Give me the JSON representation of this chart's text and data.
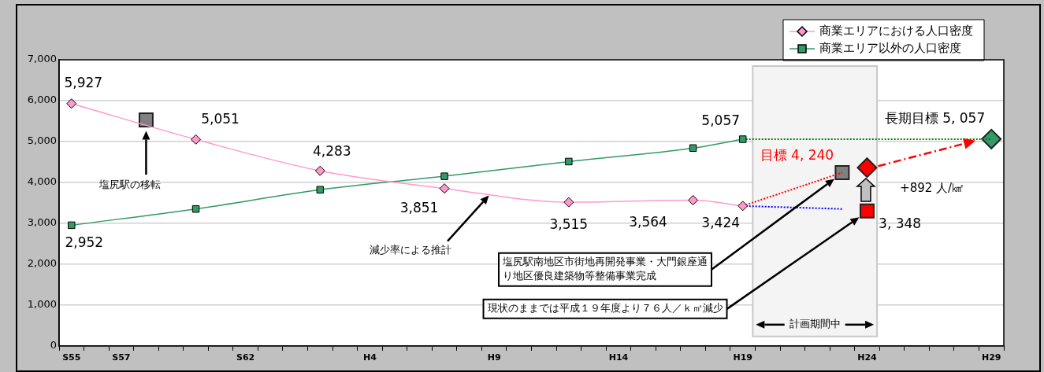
{
  "chart_data": {
    "type": "line",
    "categories": [
      "S55",
      null,
      "S57",
      null,
      null,
      null,
      null,
      "S62",
      null,
      null,
      null,
      null,
      "H4",
      null,
      null,
      null,
      null,
      "H9",
      null,
      null,
      null,
      null,
      "H14",
      null,
      null,
      null,
      null,
      "H19",
      null,
      null,
      null,
      null,
      "H24",
      null,
      null,
      null,
      null,
      "H29"
    ],
    "series": [
      {
        "name": "商業エリアにおける人口密度",
        "color": "#ff99cc",
        "marker": "diamond",
        "values": [
          5927,
          null,
          null,
          null,
          null,
          5051,
          null,
          null,
          null,
          null,
          4283,
          null,
          null,
          null,
          null,
          3851,
          null,
          null,
          null,
          null,
          3515,
          null,
          null,
          null,
          null,
          3564,
          null,
          3424,
          null,
          null,
          null,
          null,
          null,
          null,
          null,
          null,
          null,
          null
        ],
        "value_labels": [
          "5,927",
          null,
          null,
          null,
          null,
          "5,051",
          null,
          null,
          null,
          null,
          "4,283",
          null,
          null,
          null,
          null,
          "3,851",
          null,
          null,
          null,
          null,
          "3,515",
          null,
          null,
          null,
          null,
          "3,564",
          null,
          "3,424",
          null,
          null,
          null,
          null,
          null,
          null,
          null,
          null,
          null,
          null
        ]
      },
      {
        "name": "商業エリア以外の人口密度",
        "color": "#339966",
        "marker": "square",
        "values": [
          2952,
          null,
          null,
          null,
          null,
          3350,
          null,
          null,
          null,
          null,
          3820,
          null,
          null,
          null,
          null,
          4150,
          null,
          null,
          null,
          null,
          4510,
          null,
          null,
          null,
          null,
          4840,
          null,
          5057,
          null,
          null,
          null,
          null,
          null,
          null,
          null,
          null,
          null,
          null
        ],
        "value_labels": [
          "2,952",
          null,
          null,
          null,
          null,
          null,
          null,
          null,
          null,
          null,
          null,
          null,
          null,
          null,
          null,
          null,
          null,
          null,
          null,
          null,
          null,
          null,
          null,
          null,
          null,
          null,
          null,
          "5,057",
          null,
          null,
          null,
          null,
          null,
          null,
          null,
          null,
          null,
          null
        ]
      },
      {
        "type": "scatter",
        "color": "#808080",
        "marker": "square",
        "values": [
          null,
          null,
          null,
          5530,
          null,
          null,
          null,
          null,
          null,
          null,
          null,
          null,
          null,
          null,
          null,
          null,
          null,
          null,
          null,
          null,
          null,
          null,
          null,
          null,
          null,
          null,
          null,
          null,
          null,
          null,
          null,
          null,
          null,
          null,
          null,
          null,
          null,
          null
        ]
      },
      {
        "type": "line",
        "color": "#ff0000",
        "marker": "none",
        "line_style": "dotted",
        "values": [
          null,
          null,
          null,
          null,
          null,
          null,
          null,
          null,
          null,
          null,
          null,
          null,
          null,
          null,
          null,
          null,
          null,
          null,
          null,
          null,
          null,
          null,
          null,
          null,
          null,
          null,
          null,
          3424,
          null,
          null,
          null,
          4240,
          null,
          null,
          null,
          null,
          null,
          null
        ]
      },
      {
        "type": "line",
        "color": "#0000ff",
        "marker": "none",
        "line_style": "dotted",
        "values": [
          null,
          null,
          null,
          null,
          null,
          null,
          null,
          null,
          null,
          null,
          null,
          null,
          null,
          null,
          null,
          null,
          null,
          null,
          null,
          null,
          null,
          null,
          null,
          null,
          null,
          null,
          null,
          3424,
          null,
          null,
          null,
          3350,
          null,
          null,
          null,
          null,
          null,
          null
        ]
      },
      {
        "type": "line",
        "color": "#008000",
        "marker": "none",
        "line_style": "dotted",
        "values": [
          null,
          null,
          null,
          null,
          null,
          null,
          null,
          null,
          null,
          null,
          null,
          null,
          null,
          null,
          null,
          null,
          null,
          null,
          null,
          null,
          null,
          null,
          null,
          null,
          null,
          null,
          null,
          5057,
          null,
          null,
          null,
          null,
          null,
          null,
          null,
          null,
          null,
          5057
        ]
      },
      {
        "type": "scatter",
        "color": "#808080",
        "marker": "square",
        "values": [
          null,
          null,
          null,
          null,
          null,
          null,
          null,
          null,
          null,
          null,
          null,
          null,
          null,
          null,
          null,
          null,
          null,
          null,
          null,
          null,
          null,
          null,
          null,
          null,
          null,
          null,
          null,
          null,
          null,
          null,
          null,
          4240,
          null,
          null,
          null,
          null,
          null,
          null
        ]
      },
      {
        "type": "scatter",
        "color": "#ff0000",
        "marker": "diamond",
        "values": [
          null,
          null,
          null,
          null,
          null,
          null,
          null,
          null,
          null,
          null,
          null,
          null,
          null,
          null,
          null,
          null,
          null,
          null,
          null,
          null,
          null,
          null,
          null,
          null,
          null,
          null,
          null,
          null,
          null,
          null,
          null,
          null,
          4360,
          null,
          null,
          null,
          null,
          null
        ]
      },
      {
        "type": "scatter",
        "color": "#ff0000",
        "marker": "square",
        "values": [
          null,
          null,
          null,
          null,
          null,
          null,
          null,
          null,
          null,
          null,
          null,
          null,
          null,
          null,
          null,
          null,
          null,
          null,
          null,
          null,
          null,
          null,
          null,
          null,
          null,
          null,
          null,
          null,
          null,
          null,
          null,
          null,
          3300,
          null,
          null,
          null,
          null,
          null
        ]
      },
      {
        "type": "scatter",
        "color": "#339966",
        "marker": "diamond",
        "values": [
          null,
          null,
          null,
          null,
          null,
          null,
          null,
          null,
          null,
          null,
          null,
          null,
          null,
          null,
          null,
          null,
          null,
          null,
          null,
          null,
          null,
          null,
          null,
          null,
          null,
          null,
          null,
          null,
          null,
          null,
          null,
          null,
          null,
          null,
          null,
          null,
          null,
          5060
        ]
      }
    ],
    "ylim": [
      0,
      7000
    ],
    "yticks": [
      0,
      {
        "value": 1000,
        "label": "1,000"
      },
      {
        "value": 2000,
        "label": "2,000"
      },
      {
        "value": 3000,
        "label": "3,000"
      },
      {
        "value": 4000,
        "label": "4,000"
      },
      {
        "value": 5000,
        "label": "5,000"
      },
      {
        "value": 6000,
        "label": "6,000"
      },
      {
        "value": 7000,
        "label": "7,000"
      }
    ],
    "grid": "y",
    "legend": "top right",
    "bands": [
      {
        "axis": "x",
        "from": "H19",
        "to": "H24",
        "label": "計画期間中",
        "color": "#f4f4f4"
      }
    ],
    "annotations": [
      "塩尻駅の移転",
      "減少率による推計",
      "塩尻駅南地区市街地再開発事業・大門銀座通り地区優良建築物等整備事業完成",
      "現状のままでは平成１９年度より７６人／ｋ㎡減少",
      "目標 4, 240",
      "長期目標 5, 057",
      "3, 348",
      "+892 人/㎢"
    ]
  }
}
